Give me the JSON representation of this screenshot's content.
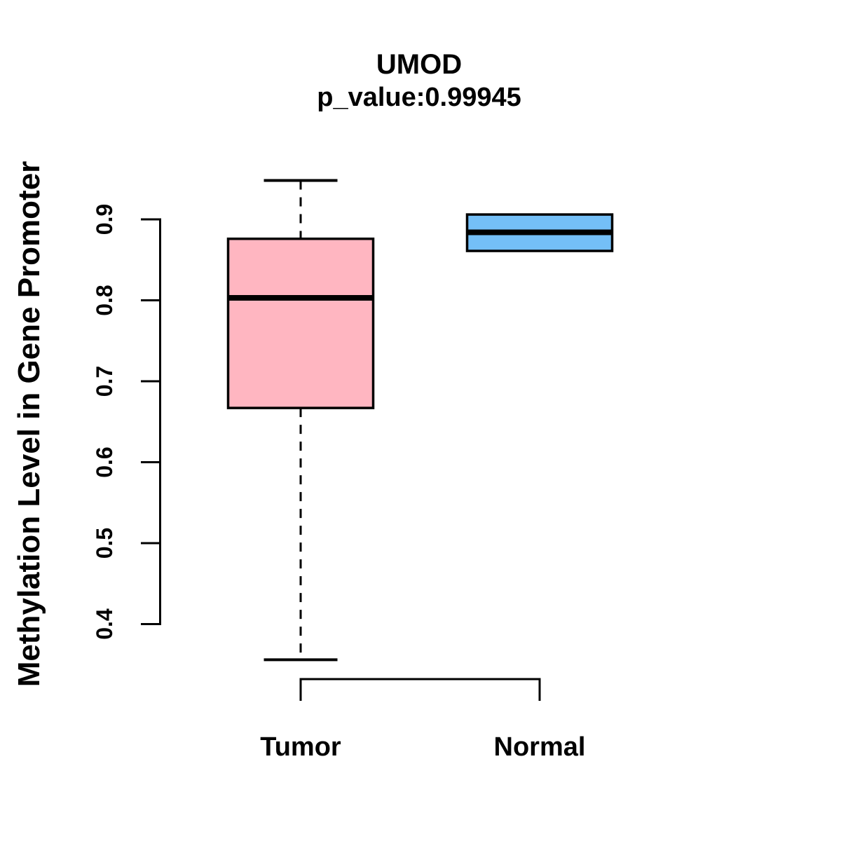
{
  "figure": {
    "background": "#FFFFFF"
  },
  "chart_data": {
    "type": "boxplot",
    "title": "UMOD",
    "subtitle": "p_value:0.99945",
    "ylabel": "Methylation Level in Gene Promoter",
    "xlabel": "",
    "y_axis": {
      "ticks": [
        "0.4",
        "0.5",
        "0.6",
        "0.7",
        "0.8",
        "0.9"
      ],
      "tick_values": [
        0.4,
        0.5,
        0.6,
        0.7,
        0.8,
        0.9
      ],
      "range_shown": [
        0.4,
        0.9
      ]
    },
    "categories": [
      "Tumor",
      "Normal"
    ],
    "series": [
      {
        "name": "Tumor",
        "color": "#FFB6C1",
        "stats": {
          "lower_whisker": 0.356,
          "q1": 0.667,
          "median": 0.803,
          "q3": 0.876,
          "upper_whisker": 0.948
        }
      },
      {
        "name": "Normal",
        "color": "#74BFF7",
        "stats": {
          "lower_whisker": 0.861,
          "q1": 0.861,
          "median": 0.884,
          "q3": 0.906,
          "upper_whisker": 0.906
        }
      }
    ],
    "style": {
      "box_border_color": "#000000",
      "median_color": "#000000",
      "axis_color": "#000000",
      "whisker_style": "dashed"
    },
    "legend": "none",
    "grid": false
  }
}
